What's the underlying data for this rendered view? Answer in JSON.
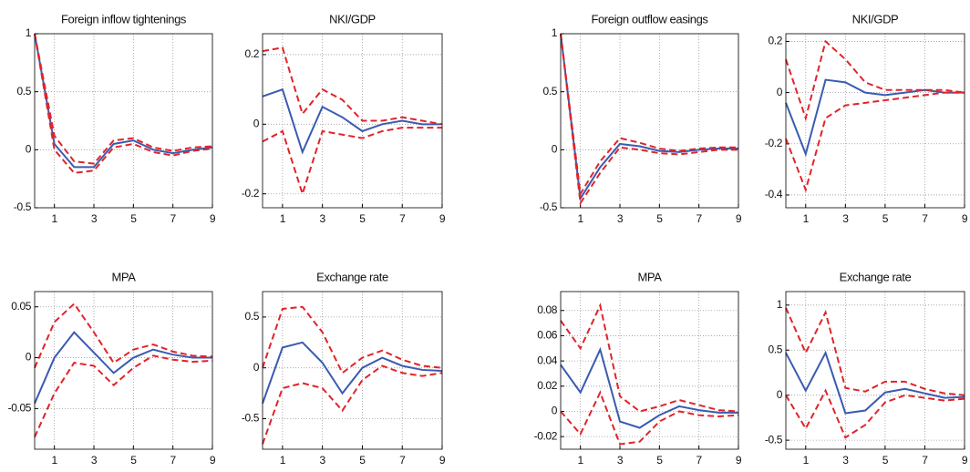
{
  "chart_data": [
    {
      "type": "line",
      "title": "Foreign inflow tightenings",
      "x": [
        0,
        1,
        2,
        3,
        4,
        5,
        6,
        7,
        8,
        9
      ],
      "xlim": [
        0,
        9
      ],
      "xticks": [
        1,
        3,
        5,
        7,
        9
      ],
      "ylim": [
        -0.5,
        1
      ],
      "yticks": [
        -0.5,
        0,
        0.5,
        1
      ],
      "grid": true,
      "series": [
        {
          "color": "#3a5bb0",
          "line_style": "solid",
          "values": [
            1,
            0.05,
            -0.15,
            -0.15,
            0.05,
            0.08,
            0.0,
            -0.03,
            0.0,
            0.02
          ]
        },
        {
          "color": "#e0242a",
          "line_style": "dashed",
          "values": [
            1,
            0.12,
            -0.1,
            -0.12,
            0.08,
            0.1,
            0.02,
            -0.01,
            0.02,
            0.03
          ]
        },
        {
          "color": "#e0242a",
          "line_style": "dashed",
          "values": [
            1,
            0.0,
            -0.2,
            -0.18,
            0.02,
            0.05,
            -0.02,
            -0.05,
            -0.01,
            0.01
          ]
        }
      ]
    },
    {
      "type": "line",
      "title": "NKI/GDP",
      "x": [
        0,
        1,
        2,
        3,
        4,
        5,
        6,
        7,
        8,
        9
      ],
      "xlim": [
        0,
        9
      ],
      "xticks": [
        1,
        3,
        5,
        7,
        9
      ],
      "ylim": [
        -0.24,
        0.26
      ],
      "yticks": [
        -0.2,
        0,
        0.2
      ],
      "grid": true,
      "series": [
        {
          "color": "#3a5bb0",
          "line_style": "solid",
          "values": [
            0.08,
            0.1,
            -0.08,
            0.05,
            0.02,
            -0.02,
            0.0,
            0.01,
            0.0,
            0.0
          ]
        },
        {
          "color": "#e0242a",
          "line_style": "dashed",
          "values": [
            0.21,
            0.22,
            0.03,
            0.1,
            0.07,
            0.01,
            0.01,
            0.02,
            0.01,
            0.0
          ]
        },
        {
          "color": "#e0242a",
          "line_style": "dashed",
          "values": [
            -0.05,
            -0.02,
            -0.2,
            -0.02,
            -0.03,
            -0.04,
            -0.02,
            -0.01,
            -0.01,
            -0.01
          ]
        }
      ]
    },
    {
      "type": "line",
      "title": "MPA",
      "x": [
        0,
        1,
        2,
        3,
        4,
        5,
        6,
        7,
        8,
        9
      ],
      "xlim": [
        0,
        9
      ],
      "xticks": [
        1,
        3,
        5,
        7,
        9
      ],
      "ylim": [
        -0.09,
        0.065
      ],
      "yticks": [
        -0.05,
        0,
        0.05
      ],
      "grid": true,
      "series": [
        {
          "color": "#3a5bb0",
          "line_style": "solid",
          "values": [
            -0.045,
            0.0,
            0.025,
            0.005,
            -0.015,
            0.0,
            0.008,
            0.003,
            0.0,
            0.0
          ]
        },
        {
          "color": "#e0242a",
          "line_style": "dashed",
          "values": [
            -0.01,
            0.035,
            0.053,
            0.025,
            -0.005,
            0.008,
            0.013,
            0.006,
            0.002,
            0.001
          ]
        },
        {
          "color": "#e0242a",
          "line_style": "dashed",
          "values": [
            -0.078,
            -0.035,
            -0.005,
            -0.008,
            -0.027,
            -0.01,
            0.002,
            -0.002,
            -0.004,
            -0.003
          ]
        }
      ]
    },
    {
      "type": "line",
      "title": "Exchange rate",
      "x": [
        0,
        1,
        2,
        3,
        4,
        5,
        6,
        7,
        8,
        9
      ],
      "xlim": [
        0,
        9
      ],
      "xticks": [
        1,
        3,
        5,
        7,
        9
      ],
      "ylim": [
        -0.8,
        0.75
      ],
      "yticks": [
        -0.5,
        0,
        0.5
      ],
      "grid": true,
      "series": [
        {
          "color": "#3a5bb0",
          "line_style": "solid",
          "values": [
            -0.35,
            0.2,
            0.25,
            0.05,
            -0.25,
            0.0,
            0.1,
            0.02,
            -0.02,
            -0.03
          ]
        },
        {
          "color": "#e0242a",
          "line_style": "dashed",
          "values": [
            0.0,
            0.58,
            0.6,
            0.35,
            -0.05,
            0.1,
            0.17,
            0.08,
            0.02,
            0.0
          ]
        },
        {
          "color": "#e0242a",
          "line_style": "dashed",
          "values": [
            -0.75,
            -0.2,
            -0.15,
            -0.2,
            -0.42,
            -0.12,
            0.02,
            -0.05,
            -0.08,
            -0.05
          ]
        }
      ]
    },
    {
      "type": "line",
      "title": "Foreign outflow easings",
      "x": [
        0,
        1,
        2,
        3,
        4,
        5,
        6,
        7,
        8,
        9
      ],
      "xlim": [
        0,
        9
      ],
      "xticks": [
        1,
        3,
        5,
        7,
        9
      ],
      "ylim": [
        -0.5,
        1
      ],
      "yticks": [
        -0.5,
        0,
        0.5,
        1
      ],
      "grid": true,
      "series": [
        {
          "color": "#3a5bb0",
          "line_style": "solid",
          "values": [
            1,
            -0.42,
            -0.15,
            0.05,
            0.03,
            -0.01,
            -0.02,
            0.0,
            0.01,
            0.01
          ]
        },
        {
          "color": "#e0242a",
          "line_style": "dashed",
          "values": [
            1,
            -0.38,
            -0.1,
            0.1,
            0.06,
            0.01,
            -0.01,
            0.01,
            0.02,
            0.02
          ]
        },
        {
          "color": "#e0242a",
          "line_style": "dashed",
          "values": [
            1,
            -0.46,
            -0.2,
            0.02,
            0.0,
            -0.03,
            -0.04,
            -0.02,
            0.0,
            0.0
          ]
        }
      ]
    },
    {
      "type": "line",
      "title": "NKI/GDP",
      "x": [
        0,
        1,
        2,
        3,
        4,
        5,
        6,
        7,
        8,
        9
      ],
      "xlim": [
        0,
        9
      ],
      "xticks": [
        1,
        3,
        5,
        7,
        9
      ],
      "ylim": [
        -0.45,
        0.23
      ],
      "yticks": [
        -0.4,
        -0.2,
        0,
        0.2
      ],
      "grid": true,
      "series": [
        {
          "color": "#3a5bb0",
          "line_style": "solid",
          "values": [
            -0.04,
            -0.24,
            0.05,
            0.04,
            0.0,
            -0.01,
            0.0,
            0.01,
            0.0,
            0.0
          ]
        },
        {
          "color": "#e0242a",
          "line_style": "dashed",
          "values": [
            0.13,
            -0.1,
            0.2,
            0.13,
            0.04,
            0.01,
            0.01,
            0.01,
            0.01,
            0.0
          ]
        },
        {
          "color": "#e0242a",
          "line_style": "dashed",
          "values": [
            -0.18,
            -0.38,
            -0.1,
            -0.05,
            -0.04,
            -0.03,
            -0.02,
            -0.01,
            0.0,
            0.0
          ]
        }
      ]
    },
    {
      "type": "line",
      "title": "MPA",
      "x": [
        0,
        1,
        2,
        3,
        4,
        5,
        6,
        7,
        8,
        9
      ],
      "xlim": [
        0,
        9
      ],
      "xticks": [
        1,
        3,
        5,
        7,
        9
      ],
      "ylim": [
        -0.03,
        0.095
      ],
      "yticks": [
        -0.02,
        0,
        0.02,
        0.04,
        0.06,
        0.08
      ],
      "grid": true,
      "series": [
        {
          "color": "#3a5bb0",
          "line_style": "solid",
          "values": [
            0.037,
            0.015,
            0.049,
            -0.008,
            -0.013,
            -0.003,
            0.004,
            0.001,
            -0.001,
            -0.001
          ]
        },
        {
          "color": "#e0242a",
          "line_style": "dashed",
          "values": [
            0.072,
            0.05,
            0.084,
            0.012,
            0.0,
            0.004,
            0.009,
            0.005,
            0.001,
            0.0
          ]
        },
        {
          "color": "#e0242a",
          "line_style": "dashed",
          "values": [
            0.0,
            -0.018,
            0.015,
            -0.026,
            -0.024,
            -0.008,
            0.0,
            -0.003,
            -0.004,
            -0.003
          ]
        }
      ]
    },
    {
      "type": "line",
      "title": "Exchange rate",
      "x": [
        0,
        1,
        2,
        3,
        4,
        5,
        6,
        7,
        8,
        9
      ],
      "xlim": [
        0,
        9
      ],
      "xticks": [
        1,
        3,
        5,
        7,
        9
      ],
      "ylim": [
        -0.6,
        1.15
      ],
      "yticks": [
        -0.5,
        0,
        0.5,
        1
      ],
      "grid": true,
      "series": [
        {
          "color": "#3a5bb0",
          "line_style": "solid",
          "values": [
            0.47,
            0.05,
            0.47,
            -0.2,
            -0.17,
            0.03,
            0.07,
            0.02,
            -0.03,
            -0.02
          ]
        },
        {
          "color": "#e0242a",
          "line_style": "dashed",
          "values": [
            0.97,
            0.47,
            0.92,
            0.08,
            0.04,
            0.15,
            0.15,
            0.07,
            0.02,
            0.0
          ]
        },
        {
          "color": "#e0242a",
          "line_style": "dashed",
          "values": [
            0.0,
            -0.37,
            0.05,
            -0.47,
            -0.33,
            -0.08,
            0.0,
            -0.03,
            -0.06,
            -0.04
          ]
        }
      ]
    }
  ]
}
